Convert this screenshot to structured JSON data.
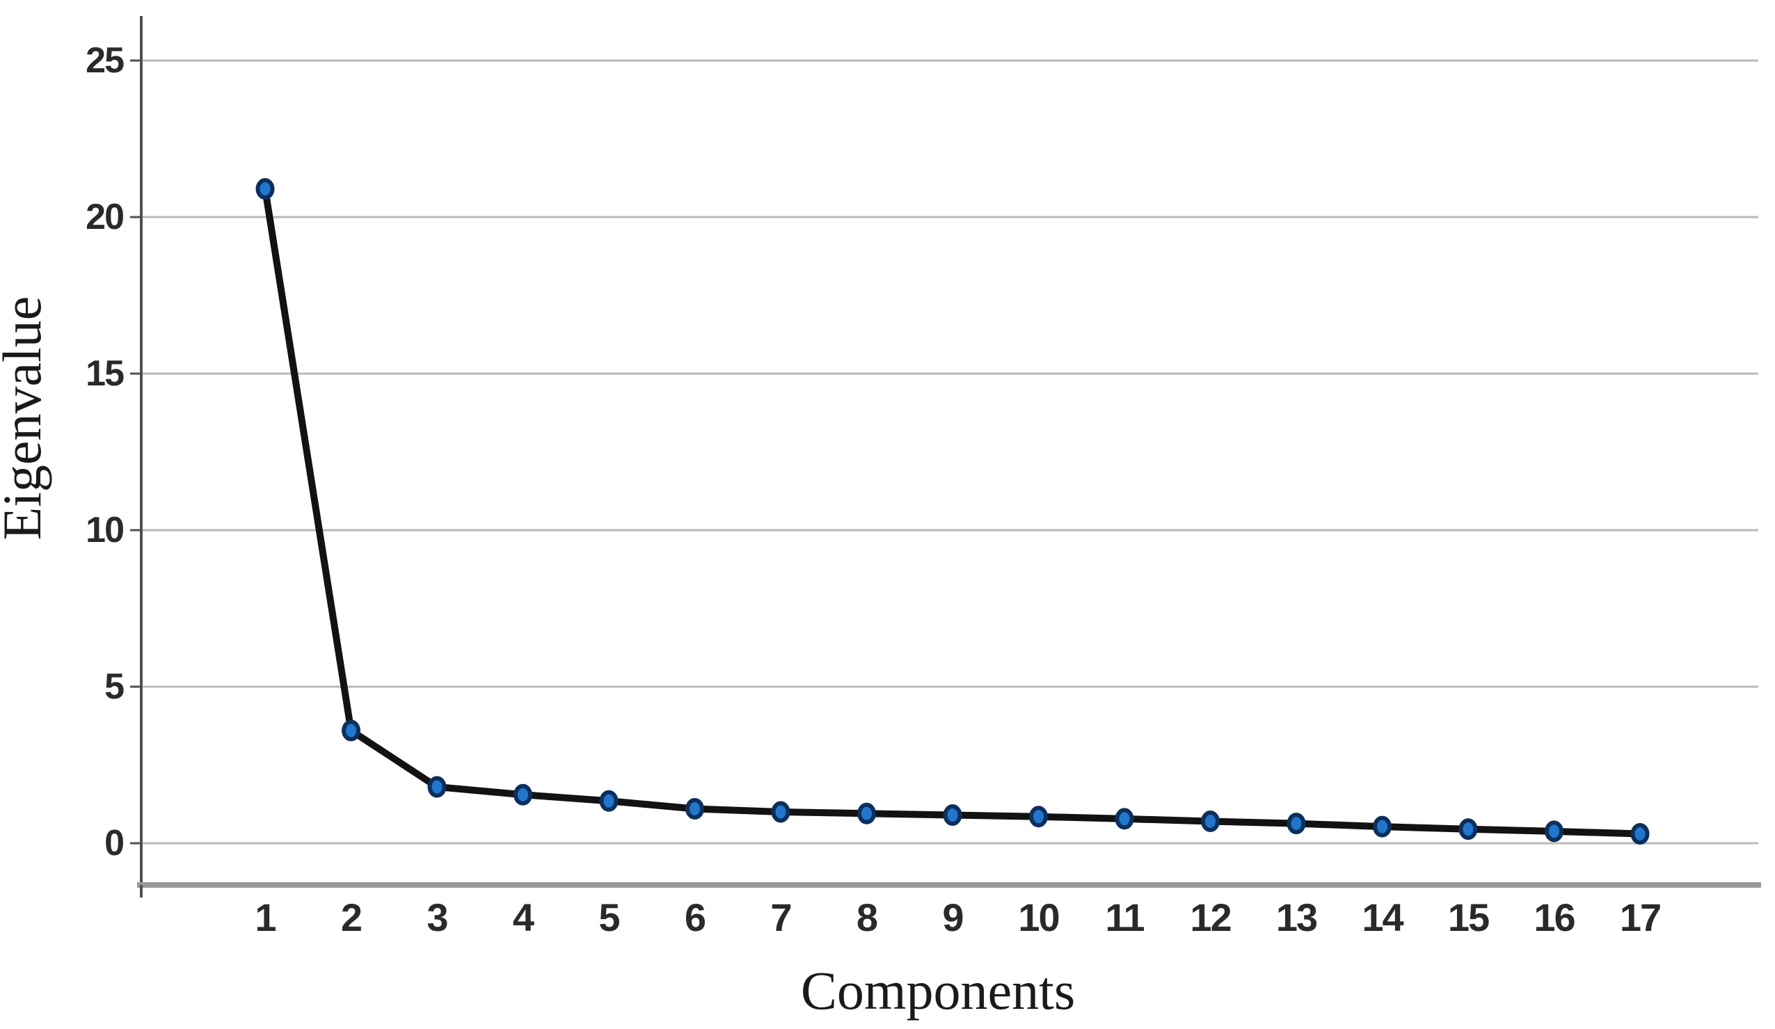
{
  "figure": {
    "type": "scree-plot",
    "background": "#ffffff"
  },
  "chart_data": {
    "type": "line",
    "title": "",
    "xlabel": "Components",
    "ylabel": "Eigenvalue",
    "x": [
      1,
      2,
      3,
      4,
      5,
      6,
      7,
      8,
      9,
      10,
      11,
      12,
      13,
      14,
      15,
      16,
      17
    ],
    "series": [
      {
        "name": "Eigenvalue",
        "values": [
          20.9,
          3.6,
          1.8,
          1.55,
          1.35,
          1.1,
          1.0,
          0.95,
          0.9,
          0.85,
          0.78,
          0.7,
          0.63,
          0.53,
          0.45,
          0.38,
          0.3
        ]
      }
    ],
    "y_ticks": [
      0,
      5,
      10,
      15,
      20,
      25
    ],
    "ylim": [
      -1.3,
      26.4
    ],
    "xlim": [
      0,
      18
    ],
    "grid": "horizontal",
    "legend": "none",
    "marker": "circle"
  },
  "style": {
    "grid_color": "#b9b9b9",
    "axis_color": "#4f4f4f",
    "frame_color": "#9a9a9a",
    "line_color": "#121212",
    "marker_fill": "#2277cc",
    "marker_stroke": "#0e2f5c",
    "text_color": "#2a2a2a"
  }
}
